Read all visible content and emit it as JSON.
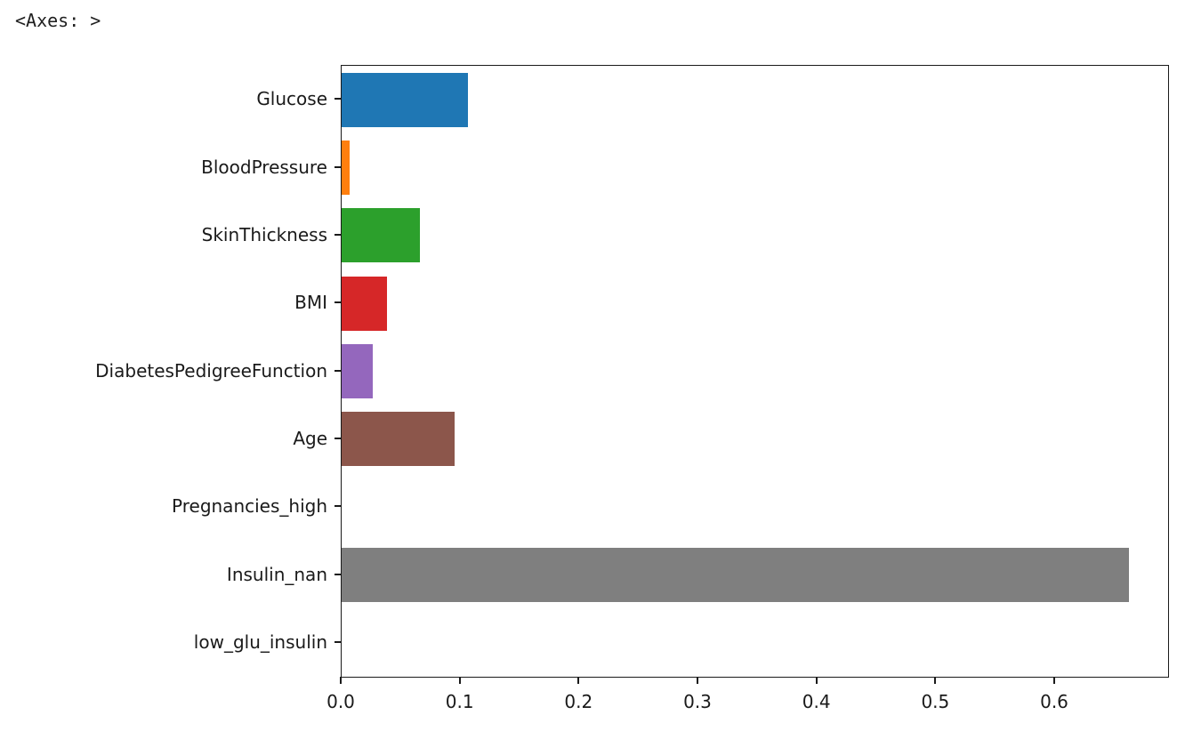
{
  "repr_text": "<Axes: >",
  "chart_data": {
    "type": "bar",
    "orientation": "horizontal",
    "title": "",
    "xlabel": "",
    "ylabel": "",
    "grid": false,
    "legend": null,
    "categories": [
      "Glucose",
      "BloodPressure",
      "SkinThickness",
      "BMI",
      "DiabetesPedigreeFunction",
      "Age",
      "Pregnancies_high",
      "Insulin_nan",
      "low_glu_insulin"
    ],
    "values": [
      0.106,
      0.007,
      0.066,
      0.038,
      0.026,
      0.095,
      0.0,
      0.662,
      0.0
    ],
    "bar_colors": [
      "#1f77b4",
      "#ff7f0e",
      "#2ca02c",
      "#d62728",
      "#9467bd",
      "#8c564b",
      "#e377c2",
      "#7f7f7f",
      "#bcbd22"
    ],
    "xlim": [
      0.0,
      0.695
    ],
    "x_ticks": [
      0.0,
      0.1,
      0.2,
      0.3,
      0.4,
      0.5,
      0.6
    ],
    "x_tick_labels": [
      "0.0",
      "0.1",
      "0.2",
      "0.3",
      "0.4",
      "0.5",
      "0.6"
    ]
  },
  "colors": {
    "background": "#ffffff",
    "spine": "#1a1a1a",
    "text": "#1a1a1a"
  }
}
